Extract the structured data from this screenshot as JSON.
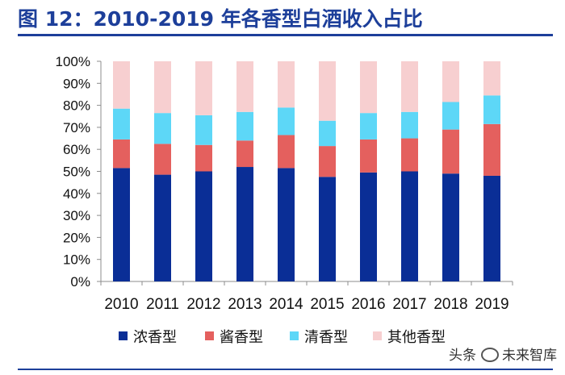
{
  "header": {
    "title": "图 12：2010-2019 年各香型白酒收入占比"
  },
  "watermark": {
    "source": "头条",
    "brand": "未来智库"
  },
  "chart_data": {
    "type": "bar",
    "stacked": true,
    "categories": [
      "2010",
      "2011",
      "2012",
      "2013",
      "2014",
      "2015",
      "2016",
      "2017",
      "2018",
      "2019"
    ],
    "series": [
      {
        "name": "浓香型",
        "color": "#0a2e96",
        "values": [
          51.5,
          48.5,
          50.0,
          52.0,
          51.5,
          47.5,
          49.5,
          50.0,
          49.0,
          48.0
        ]
      },
      {
        "name": "酱香型",
        "color": "#e4605e",
        "values": [
          13.0,
          14.0,
          12.0,
          12.0,
          15.0,
          14.0,
          15.0,
          15.0,
          20.0,
          23.5
        ]
      },
      {
        "name": "清香型",
        "color": "#5dd7f7",
        "values": [
          14.0,
          14.0,
          13.5,
          13.0,
          12.5,
          11.5,
          12.0,
          12.0,
          12.5,
          13.0
        ]
      },
      {
        "name": "其他香型",
        "color": "#f7cfd0",
        "values": [
          21.5,
          23.5,
          24.5,
          23.0,
          21.0,
          27.0,
          23.5,
          23.0,
          18.5,
          15.5
        ]
      }
    ],
    "yticks": [
      "0%",
      "10%",
      "20%",
      "30%",
      "40%",
      "50%",
      "60%",
      "70%",
      "80%",
      "90%",
      "100%"
    ],
    "ylim": [
      0,
      100
    ],
    "grid": false,
    "legend_position": "bottom"
  }
}
